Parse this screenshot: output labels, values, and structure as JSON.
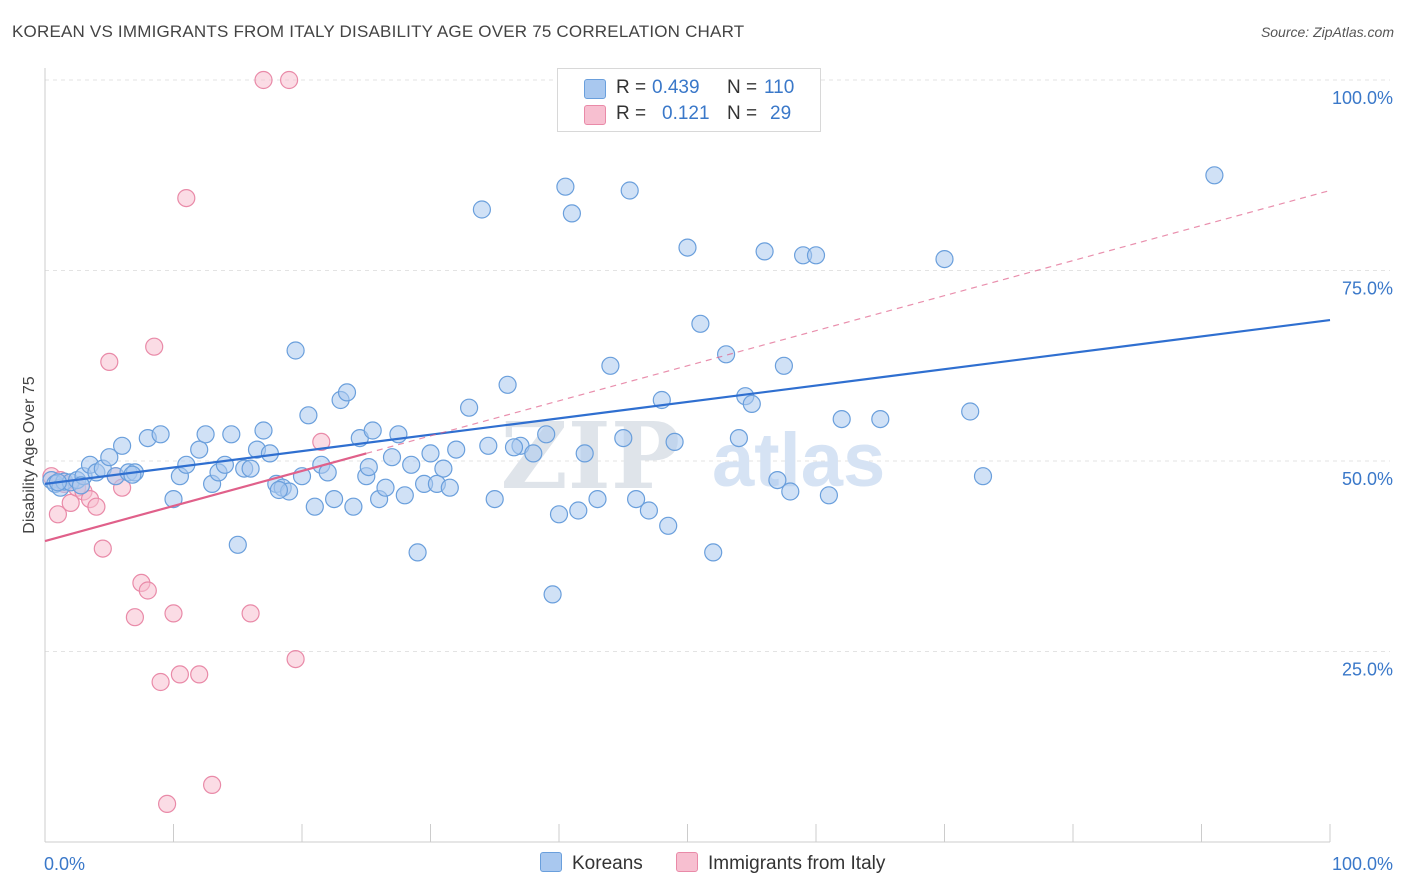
{
  "title": "KOREAN VS IMMIGRANTS FROM ITALY DISABILITY AGE OVER 75 CORRELATION CHART",
  "source": "Source: ZipAtlas.com",
  "watermark": {
    "zip": "ZIP",
    "atlas": "atlas"
  },
  "colors": {
    "koreans_fill": "#a9c8ef",
    "koreans_stroke": "#6a9fdc",
    "italy_fill": "#f7bfd0",
    "italy_stroke": "#e98aa8",
    "blue_line": "#2f6fd0",
    "pink_line": "#e0608a",
    "tick_label": "#3a78c9"
  },
  "legend": {
    "rows": [
      {
        "r_label": "R =",
        "r_value": "0.439",
        "n_label": "N =",
        "n_value": "110"
      },
      {
        "r_label": "R =",
        "r_value": "0.121",
        "n_label": "N =",
        "n_value": "29"
      }
    ],
    "bottom": [
      "Koreans",
      "Immigrants from Italy"
    ]
  },
  "chart_data": {
    "type": "scatter",
    "title": "KOREAN VS IMMIGRANTS FROM ITALY DISABILITY AGE OVER 75 CORRELATION CHART",
    "xlabel": "",
    "ylabel": "Disability Age Over 75",
    "xlim": [
      0,
      100
    ],
    "ylim": [
      0,
      100
    ],
    "x_tick_labels": [
      "0.0%",
      "100.0%"
    ],
    "y_tick_labels": [
      "25.0%",
      "50.0%",
      "75.0%",
      "100.0%"
    ],
    "y_ticks": [
      25,
      50,
      75,
      100
    ],
    "grid": true,
    "legend_position": "top-center",
    "series": [
      {
        "name": "Koreans",
        "r": 0.439,
        "n": 110,
        "trend": {
          "x": [
            0,
            100
          ],
          "y": [
            47.0,
            68.5
          ],
          "style": "solid"
        },
        "points": [
          [
            0.5,
            47.5
          ],
          [
            0.8,
            47
          ],
          [
            1.2,
            46.5
          ],
          [
            1.5,
            47.3
          ],
          [
            2,
            47.2
          ],
          [
            2.5,
            47.5
          ],
          [
            3,
            48
          ],
          [
            3.5,
            49.5
          ],
          [
            4,
            48.5
          ],
          [
            4.5,
            49
          ],
          [
            5,
            50.5
          ],
          [
            5.5,
            48
          ],
          [
            6,
            52
          ],
          [
            6.5,
            48.5
          ],
          [
            7,
            48.5
          ],
          [
            8,
            53
          ],
          [
            9,
            53.5
          ],
          [
            10,
            45
          ],
          [
            10.5,
            48
          ],
          [
            11,
            49.5
          ],
          [
            12,
            51.5
          ],
          [
            12.5,
            53.5
          ],
          [
            13,
            47
          ],
          [
            13.5,
            48.5
          ],
          [
            14,
            49.5
          ],
          [
            14.5,
            53.5
          ],
          [
            15,
            39
          ],
          [
            15.5,
            49
          ],
          [
            16,
            49
          ],
          [
            16.5,
            51.5
          ],
          [
            17,
            54
          ],
          [
            17.5,
            51
          ],
          [
            18,
            47
          ],
          [
            18.5,
            46.5
          ],
          [
            19,
            46
          ],
          [
            19.5,
            64.5
          ],
          [
            20,
            48
          ],
          [
            20.5,
            56
          ],
          [
            21,
            44
          ],
          [
            21.5,
            49.5
          ],
          [
            22,
            48.5
          ],
          [
            22.5,
            45
          ],
          [
            23,
            58
          ],
          [
            23.5,
            59
          ],
          [
            24,
            44
          ],
          [
            24.5,
            53
          ],
          [
            25,
            48
          ],
          [
            25.5,
            54
          ],
          [
            26,
            45
          ],
          [
            26.5,
            46.5
          ],
          [
            27,
            50.5
          ],
          [
            27.5,
            53.5
          ],
          [
            28,
            45.5
          ],
          [
            28.5,
            49.5
          ],
          [
            29,
            38
          ],
          [
            29.5,
            47
          ],
          [
            30,
            51
          ],
          [
            30.5,
            47
          ],
          [
            31,
            49
          ],
          [
            31.5,
            46.5
          ],
          [
            32,
            51.5
          ],
          [
            33,
            57
          ],
          [
            34,
            83
          ],
          [
            34.5,
            52
          ],
          [
            35,
            45
          ],
          [
            36,
            60
          ],
          [
            37,
            52
          ],
          [
            38,
            51
          ],
          [
            39,
            53.5
          ],
          [
            39.5,
            32.5
          ],
          [
            40,
            43
          ],
          [
            40.5,
            86
          ],
          [
            41,
            82.5
          ],
          [
            41.5,
            43.5
          ],
          [
            42,
            51
          ],
          [
            43,
            45
          ],
          [
            44,
            62.5
          ],
          [
            45,
            53
          ],
          [
            45.5,
            85.5
          ],
          [
            46,
            45
          ],
          [
            47,
            43.5
          ],
          [
            48,
            58
          ],
          [
            48.5,
            41.5
          ],
          [
            49,
            52.5
          ],
          [
            50,
            78
          ],
          [
            51,
            68
          ],
          [
            52,
            38
          ],
          [
            53,
            64
          ],
          [
            54,
            53
          ],
          [
            54.5,
            58.5
          ],
          [
            55,
            57.5
          ],
          [
            56,
            77.5
          ],
          [
            57,
            47.5
          ],
          [
            57.5,
            62.5
          ],
          [
            58,
            46
          ],
          [
            59,
            77
          ],
          [
            60,
            77
          ],
          [
            61,
            45.5
          ],
          [
            62,
            55.5
          ],
          [
            65,
            55.5
          ],
          [
            70,
            76.5
          ],
          [
            72,
            56.5
          ],
          [
            73,
            48
          ],
          [
            91,
            87.5
          ],
          [
            1,
            47.2
          ],
          [
            2.8,
            46.8
          ],
          [
            6.8,
            48.2
          ],
          [
            18.2,
            46.2
          ],
          [
            25.2,
            49.2
          ],
          [
            36.5,
            51.8
          ]
        ]
      },
      {
        "name": "Immigrants from Italy",
        "r": 0.121,
        "n": 29,
        "trend": {
          "x": [
            0,
            25
          ],
          "y": [
            39.5,
            51.0
          ],
          "style": "solid"
        },
        "trend_ext": {
          "x": [
            25,
            100
          ],
          "y": [
            51.0,
            85.5
          ],
          "style": "dashed"
        },
        "points": [
          [
            0.5,
            48
          ],
          [
            1,
            43
          ],
          [
            1.5,
            47
          ],
          [
            2,
            44.5
          ],
          [
            2.5,
            46.5
          ],
          [
            3,
            46
          ],
          [
            3.5,
            45
          ],
          [
            4,
            44
          ],
          [
            4.5,
            38.5
          ],
          [
            5,
            63
          ],
          [
            5.5,
            48
          ],
          [
            6,
            46.5
          ],
          [
            7,
            29.5
          ],
          [
            7.5,
            34
          ],
          [
            8,
            33
          ],
          [
            8.5,
            65
          ],
          [
            9,
            21
          ],
          [
            9.5,
            5
          ],
          [
            10,
            30
          ],
          [
            10.5,
            22
          ],
          [
            11,
            84.5
          ],
          [
            12,
            22
          ],
          [
            13,
            7.5
          ],
          [
            16,
            30
          ],
          [
            17,
            100
          ],
          [
            19,
            100
          ],
          [
            19.5,
            24
          ],
          [
            21.5,
            52.5
          ],
          [
            1.2,
            47.5
          ]
        ]
      }
    ]
  }
}
